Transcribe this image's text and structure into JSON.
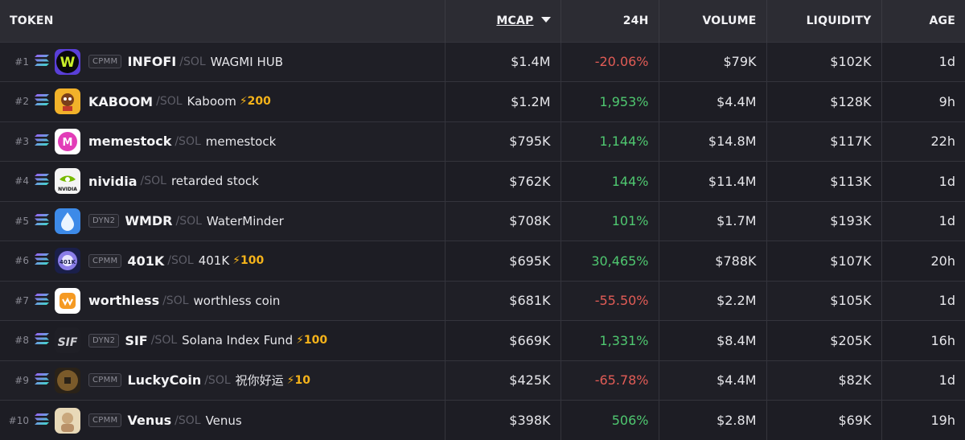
{
  "header": {
    "token": "TOKEN",
    "mcap": "MCAP",
    "change": "24H",
    "volume": "VOLUME",
    "liquidity": "LIQUIDITY",
    "age": "AGE"
  },
  "colors": {
    "negative": "#e25c56",
    "positive": "#4fc870",
    "boost": "#f5b31a"
  },
  "rows": [
    {
      "rank": "#1",
      "badge": "CPMM",
      "symbol": "INFOFI",
      "quote": "/SOL",
      "name": "WAGMI HUB",
      "boost": "",
      "mcap": "$1.4M",
      "change": "-20.06%",
      "dir": "neg",
      "volume": "$79K",
      "liquidity": "$102K",
      "age": "1d",
      "icon": "wagmi-logo-icon"
    },
    {
      "rank": "#2",
      "badge": "",
      "symbol": "KABOOM",
      "quote": "/SOL",
      "name": "Kaboom",
      "boost": "⚡200",
      "mcap": "$1.2M",
      "change": "1,953%",
      "dir": "pos",
      "volume": "$4.4M",
      "liquidity": "$128K",
      "age": "9h",
      "icon": "kaboom-logo-icon"
    },
    {
      "rank": "#3",
      "badge": "",
      "symbol": "memestock",
      "quote": "/SOL",
      "name": "memestock",
      "boost": "",
      "mcap": "$795K",
      "change": "1,144%",
      "dir": "pos",
      "volume": "$14.8M",
      "liquidity": "$117K",
      "age": "22h",
      "icon": "memestock-logo-icon"
    },
    {
      "rank": "#4",
      "badge": "",
      "symbol": "nividia",
      "quote": "/SOL",
      "name": "retarded stock",
      "boost": "",
      "mcap": "$762K",
      "change": "144%",
      "dir": "pos",
      "volume": "$11.4M",
      "liquidity": "$113K",
      "age": "1d",
      "icon": "nividia-logo-icon"
    },
    {
      "rank": "#5",
      "badge": "DYN2",
      "symbol": "WMDR",
      "quote": "/SOL",
      "name": "WaterMinder",
      "boost": "",
      "mcap": "$708K",
      "change": "101%",
      "dir": "pos",
      "volume": "$1.7M",
      "liquidity": "$193K",
      "age": "1d",
      "icon": "water-drop-icon"
    },
    {
      "rank": "#6",
      "badge": "CPMM",
      "symbol": "401K",
      "quote": "/SOL",
      "name": "401K",
      "boost": "⚡100",
      "mcap": "$695K",
      "change": "30,465%",
      "dir": "pos",
      "volume": "$788K",
      "liquidity": "$107K",
      "age": "20h",
      "icon": "401k-logo-icon"
    },
    {
      "rank": "#7",
      "badge": "",
      "symbol": "worthless",
      "quote": "/SOL",
      "name": "worthless coin",
      "boost": "",
      "mcap": "$681K",
      "change": "-55.50%",
      "dir": "neg",
      "volume": "$2.2M",
      "liquidity": "$105K",
      "age": "1d",
      "icon": "worthless-logo-icon"
    },
    {
      "rank": "#8",
      "badge": "DYN2",
      "symbol": "SIF",
      "quote": "/SOL",
      "name": "Solana Index Fund",
      "boost": "⚡100",
      "mcap": "$669K",
      "change": "1,331%",
      "dir": "pos",
      "volume": "$8.4M",
      "liquidity": "$205K",
      "age": "16h",
      "icon": "sif-logo-icon"
    },
    {
      "rank": "#9",
      "badge": "CPMM",
      "symbol": "LuckyCoin",
      "quote": "/SOL",
      "name": "祝你好运",
      "boost": "⚡10",
      "mcap": "$425K",
      "change": "-65.78%",
      "dir": "neg",
      "volume": "$4.4M",
      "liquidity": "$82K",
      "age": "1d",
      "icon": "lucky-coin-icon"
    },
    {
      "rank": "#10",
      "badge": "CPMM",
      "symbol": "Venus",
      "quote": "/SOL",
      "name": "Venus",
      "boost": "",
      "mcap": "$398K",
      "change": "506%",
      "dir": "pos",
      "volume": "$2.8M",
      "liquidity": "$69K",
      "age": "19h",
      "icon": "venus-logo-icon"
    }
  ]
}
